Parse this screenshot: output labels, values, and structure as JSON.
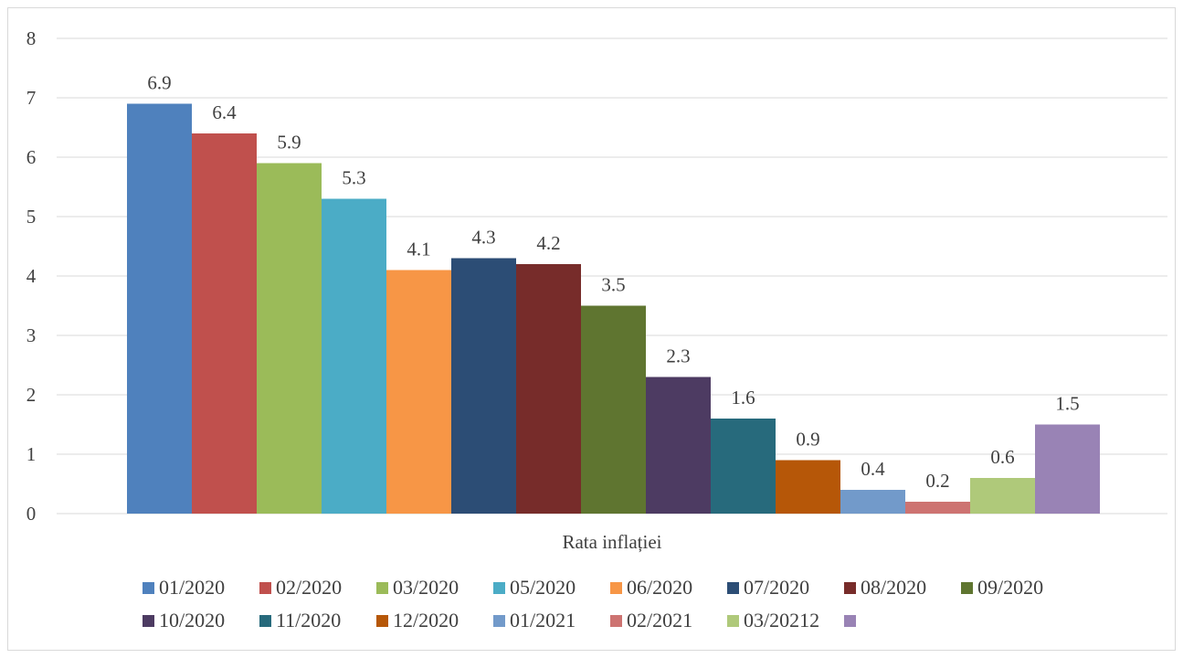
{
  "chart_data": {
    "type": "bar",
    "title": "",
    "xlabel": "Rata inflației",
    "ylabel": "",
    "ylim": [
      0,
      8
    ],
    "yticks": [
      0,
      1,
      2,
      3,
      4,
      5,
      6,
      7,
      8
    ],
    "categories": [
      "Rata inflației"
    ],
    "grid": true,
    "legend_position": "bottom",
    "series": [
      {
        "name": "01/2020",
        "value": 6.9,
        "label": "6.9",
        "color": "#4F81BD"
      },
      {
        "name": "02/2020",
        "value": 6.4,
        "label": "6.4",
        "color": "#C0504D"
      },
      {
        "name": "03/2020",
        "value": 5.9,
        "label": "5.9",
        "color": "#9BBB59"
      },
      {
        "name": "05/2020",
        "value": 5.3,
        "label": "5.3",
        "color": "#4BACC6"
      },
      {
        "name": "06/2020",
        "value": 4.1,
        "label": "4.1",
        "color": "#F79646"
      },
      {
        "name": "07/2020",
        "value": 4.3,
        "label": "4.3",
        "color": "#2C4D75"
      },
      {
        "name": "08/2020",
        "value": 4.2,
        "label": "4.2",
        "color": "#772C2A"
      },
      {
        "name": "09/2020",
        "value": 3.5,
        "label": "3.5",
        "color": "#5F7530"
      },
      {
        "name": "10/2020",
        "value": 2.3,
        "label": "2.3",
        "color": "#4D3B62"
      },
      {
        "name": "11/2020",
        "value": 1.6,
        "label": "1.6",
        "color": "#276A7C"
      },
      {
        "name": "12/2020",
        "value": 0.9,
        "label": "0.9",
        "color": "#B65708"
      },
      {
        "name": "01/2021",
        "value": 0.4,
        "label": "0.4",
        "color": "#729ACA"
      },
      {
        "name": "02/2021",
        "value": 0.2,
        "label": "0.2",
        "color": "#CD7371"
      },
      {
        "name": "03/20212",
        "value": 0.6,
        "label": "0.6",
        "color": "#AFC97A"
      },
      {
        "name": "",
        "value": 1.5,
        "label": "1.5",
        "color": "#9983B5"
      }
    ]
  }
}
